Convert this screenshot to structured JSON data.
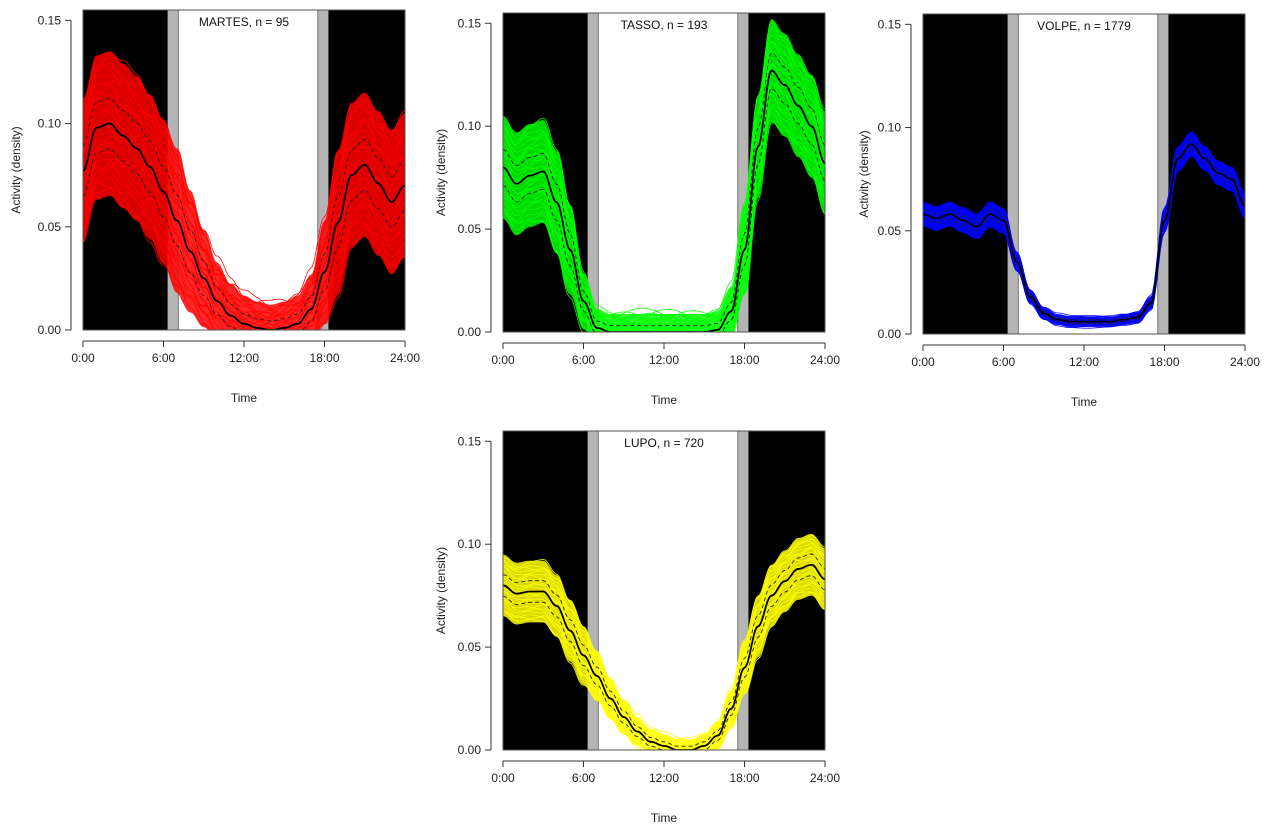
{
  "chart_data": [
    {
      "type": "line",
      "title": "MARTES, n = 95",
      "xlabel": "Time",
      "ylabel": "Activity (density)",
      "xlim": [
        0,
        24
      ],
      "ylim": [
        0,
        0.155
      ],
      "xticks": [
        "0:00",
        "6:00",
        "12:00",
        "18:00",
        "24:00"
      ],
      "yticks": [
        "0.00",
        "0.05",
        "0.10",
        "0.15"
      ],
      "night_periods": [
        [
          0,
          6.3
        ],
        [
          18.3,
          24
        ]
      ],
      "twilight_periods": [
        [
          6.3,
          7.1
        ],
        [
          17.5,
          18.3
        ]
      ],
      "series_color": "#ff0000",
      "band_halfwidth": 0.035,
      "x": [
        0,
        1,
        2,
        3,
        4,
        5,
        6,
        7,
        8,
        9,
        10,
        11,
        12,
        13,
        14,
        15,
        16,
        17,
        18,
        19,
        20,
        21,
        22,
        23,
        24
      ],
      "mean": [
        0.077,
        0.098,
        0.1,
        0.094,
        0.088,
        0.079,
        0.067,
        0.053,
        0.038,
        0.025,
        0.014,
        0.007,
        0.003,
        0.001,
        0.0,
        0.001,
        0.003,
        0.01,
        0.028,
        0.052,
        0.075,
        0.08,
        0.071,
        0.062,
        0.07
      ]
    },
    {
      "type": "line",
      "title": "TASSO, n = 193",
      "xlabel": "Time",
      "ylabel": "Activity (density)",
      "xlim": [
        0,
        24
      ],
      "ylim": [
        0,
        0.155
      ],
      "xticks": [
        "0:00",
        "6:00",
        "12:00",
        "18:00",
        "24:00"
      ],
      "yticks": [
        "0.00",
        "0.05",
        "0.10",
        "0.15"
      ],
      "night_periods": [
        [
          0,
          6.3
        ],
        [
          18.3,
          24
        ]
      ],
      "twilight_periods": [
        [
          6.3,
          7.1
        ],
        [
          17.5,
          18.3
        ]
      ],
      "series_color": "#00ff00",
      "band_halfwidth": 0.025,
      "x": [
        0,
        1,
        2,
        3,
        4,
        5,
        6,
        7,
        8,
        9,
        10,
        11,
        12,
        13,
        14,
        15,
        16,
        17,
        18,
        19,
        20,
        21,
        22,
        23,
        24
      ],
      "mean": [
        0.08,
        0.072,
        0.076,
        0.078,
        0.063,
        0.04,
        0.015,
        0.002,
        0.0,
        0.0,
        0.0,
        0.0,
        0.0,
        0.0,
        0.0,
        0.0,
        0.001,
        0.01,
        0.04,
        0.09,
        0.127,
        0.12,
        0.11,
        0.1,
        0.082
      ]
    },
    {
      "type": "line",
      "title": "VOLPE, n = 1779",
      "xlabel": "Time",
      "ylabel": "Activity (density)",
      "xlim": [
        0,
        24
      ],
      "ylim": [
        0,
        0.155
      ],
      "xticks": [
        "0:00",
        "6:00",
        "12:00",
        "18:00",
        "24:00"
      ],
      "yticks": [
        "0.00",
        "0.05",
        "0.10",
        "0.15"
      ],
      "night_periods": [
        [
          0,
          6.3
        ],
        [
          18.3,
          24
        ]
      ],
      "twilight_periods": [
        [
          6.3,
          7.1
        ],
        [
          17.5,
          18.3
        ]
      ],
      "series_color": "#0000ff",
      "band_halfwidth": 0.006,
      "x": [
        0,
        1,
        2,
        3,
        4,
        5,
        6,
        7,
        8,
        9,
        10,
        11,
        12,
        13,
        14,
        15,
        16,
        17,
        18,
        19,
        20,
        21,
        22,
        23,
        24
      ],
      "mean": [
        0.058,
        0.056,
        0.058,
        0.055,
        0.052,
        0.058,
        0.055,
        0.035,
        0.018,
        0.01,
        0.007,
        0.006,
        0.006,
        0.006,
        0.006,
        0.007,
        0.008,
        0.015,
        0.055,
        0.085,
        0.092,
        0.085,
        0.078,
        0.075,
        0.062
      ]
    },
    {
      "type": "line",
      "title": "LUPO, n = 720",
      "xlabel": "Time",
      "ylabel": "Activity (density)",
      "xlim": [
        0,
        24
      ],
      "ylim": [
        0,
        0.155
      ],
      "xticks": [
        "0:00",
        "6:00",
        "12:00",
        "18:00",
        "24:00"
      ],
      "yticks": [
        "0.00",
        "0.05",
        "0.10",
        "0.15"
      ],
      "night_periods": [
        [
          0,
          6.3
        ],
        [
          18.3,
          24
        ]
      ],
      "twilight_periods": [
        [
          6.3,
          7.1
        ],
        [
          17.5,
          18.3
        ]
      ],
      "series_color": "#ffff00",
      "band_halfwidth": 0.015,
      "x": [
        0,
        1,
        2,
        3,
        4,
        5,
        6,
        7,
        8,
        9,
        10,
        11,
        12,
        13,
        14,
        15,
        16,
        17,
        18,
        19,
        20,
        21,
        22,
        23,
        24
      ],
      "mean": [
        0.08,
        0.076,
        0.077,
        0.077,
        0.07,
        0.058,
        0.046,
        0.036,
        0.025,
        0.016,
        0.009,
        0.004,
        0.002,
        0.0,
        0.0,
        0.002,
        0.007,
        0.02,
        0.04,
        0.06,
        0.075,
        0.082,
        0.088,
        0.09,
        0.083
      ]
    }
  ]
}
